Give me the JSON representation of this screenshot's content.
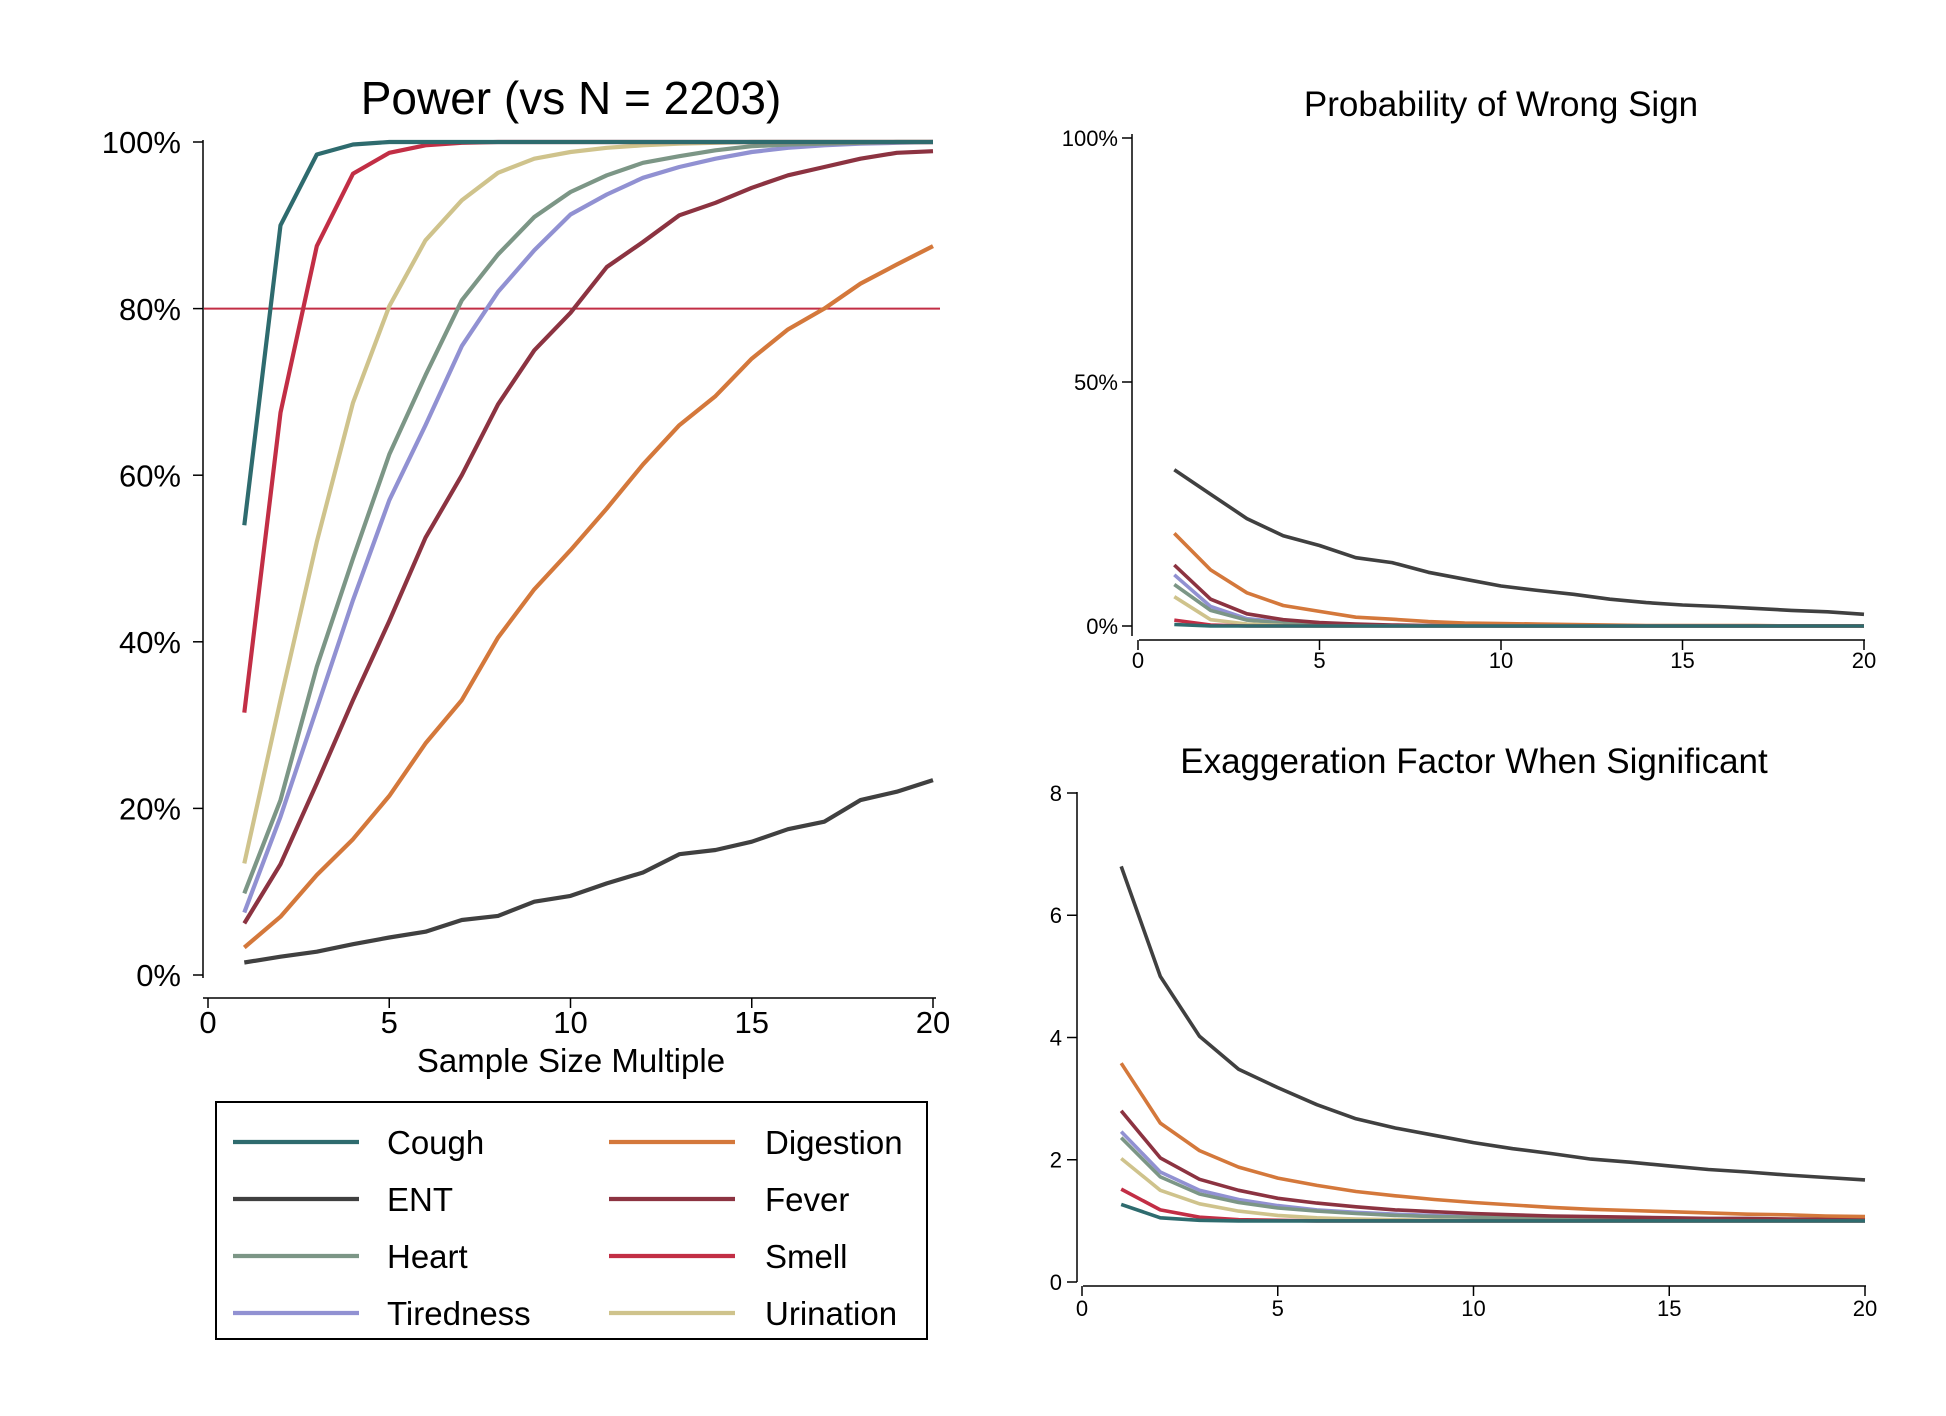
{
  "colors": {
    "Cough": "#2e6b6e",
    "ENT": "#404040",
    "Heart": "#7c9686",
    "Tiredness": "#9191d2",
    "Digestion": "#d4783b",
    "Fever": "#8c3341",
    "Smell": "#c22e45",
    "Urination": "#cfc38c",
    "reference_line": "#c22e45"
  },
  "legend": {
    "entries": [
      "Cough",
      "Digestion",
      "ENT",
      "Fever",
      "Heart",
      "Smell",
      "Tiredness",
      "Urination"
    ]
  },
  "chart_data": [
    {
      "id": "power",
      "type": "line",
      "title": "Power (vs N = 2203)",
      "xlabel": "Sample Size Multiple",
      "ylabel": "",
      "xlim": [
        0,
        20
      ],
      "ylim": [
        0,
        100
      ],
      "xticks": [
        0,
        5,
        10,
        15,
        20
      ],
      "yticks": [
        0,
        20,
        40,
        60,
        80,
        100
      ],
      "ytick_labels": [
        "0%",
        "20%",
        "40%",
        "60%",
        "80%",
        "100%"
      ],
      "reference_line": {
        "axis": "y",
        "value": 80
      },
      "x": [
        1,
        2,
        3,
        4,
        5,
        6,
        7,
        8,
        9,
        10,
        11,
        12,
        13,
        14,
        15,
        16,
        17,
        18,
        19,
        20
      ],
      "series": [
        {
          "name": "Cough",
          "values": [
            54,
            90,
            98.5,
            99.7,
            100,
            100,
            100,
            100,
            100,
            100,
            100,
            100,
            100,
            100,
            100,
            100,
            100,
            100,
            100,
            100
          ]
        },
        {
          "name": "ENT",
          "values": [
            1.5,
            2.2,
            2.8,
            3.7,
            4.5,
            5.2,
            6.6,
            7.1,
            8.8,
            9.5,
            11,
            12.3,
            14.5,
            15,
            16,
            17.5,
            18.4,
            21,
            22,
            23.4
          ]
        },
        {
          "name": "Heart",
          "values": [
            9.8,
            21,
            37,
            50,
            62.5,
            72,
            81,
            86.5,
            91,
            94,
            96,
            97.5,
            98.3,
            99,
            99.5,
            99.7,
            99.8,
            99.9,
            100,
            100
          ]
        },
        {
          "name": "Tiredness",
          "values": [
            7.5,
            19,
            32,
            45,
            57,
            66,
            75.5,
            82,
            87,
            91.3,
            93.7,
            95.7,
            97,
            98,
            98.8,
            99.3,
            99.6,
            99.8,
            99.9,
            100
          ]
        },
        {
          "name": "Digestion",
          "values": [
            3.3,
            7,
            12,
            16.3,
            21.5,
            27.8,
            33,
            40.5,
            46.3,
            51,
            56,
            61.3,
            66,
            69.5,
            74,
            77.5,
            80,
            83,
            85.3,
            87.5
          ]
        },
        {
          "name": "Fever",
          "values": [
            6.2,
            13.3,
            23,
            33,
            42.5,
            52.5,
            60,
            68.5,
            75,
            79.5,
            85,
            88,
            91.2,
            92.7,
            94.5,
            96,
            97,
            98,
            98.7,
            98.9
          ]
        },
        {
          "name": "Smell",
          "values": [
            31.5,
            67.5,
            87.5,
            96.2,
            98.7,
            99.6,
            99.9,
            100,
            100,
            100,
            100,
            100,
            100,
            100,
            100,
            100,
            100,
            100,
            100,
            100
          ]
        },
        {
          "name": "Urination",
          "values": [
            13.4,
            33,
            52,
            68.7,
            80.3,
            88.2,
            93,
            96.3,
            98,
            98.8,
            99.3,
            99.6,
            99.8,
            99.9,
            100,
            100,
            100,
            100,
            100,
            100
          ]
        }
      ]
    },
    {
      "id": "wrong-sign",
      "type": "line",
      "title": "Probability of Wrong Sign",
      "xlabel": "",
      "ylabel": "",
      "xlim": [
        0,
        20
      ],
      "ylim": [
        0,
        100
      ],
      "xticks": [
        0,
        5,
        10,
        15,
        20
      ],
      "yticks": [
        0,
        50,
        100
      ],
      "ytick_labels": [
        "0%",
        "50%",
        "100%"
      ],
      "x": [
        1,
        2,
        3,
        4,
        5,
        6,
        7,
        8,
        9,
        10,
        11,
        12,
        13,
        14,
        15,
        16,
        17,
        18,
        19,
        20
      ],
      "series": [
        {
          "name": "Cough",
          "values": [
            0.3,
            0,
            0,
            0,
            0,
            0,
            0,
            0,
            0,
            0,
            0,
            0,
            0,
            0,
            0,
            0,
            0,
            0,
            0,
            0
          ]
        },
        {
          "name": "ENT",
          "values": [
            32,
            27,
            22,
            18.5,
            16.5,
            14,
            13,
            11,
            9.6,
            8.2,
            7.3,
            6.5,
            5.5,
            4.8,
            4.3,
            4,
            3.6,
            3.2,
            2.9,
            2.4
          ]
        },
        {
          "name": "Heart",
          "values": [
            8.5,
            3.2,
            1.2,
            0.6,
            0.3,
            0.2,
            0.1,
            0,
            0,
            0,
            0,
            0,
            0,
            0,
            0,
            0,
            0,
            0,
            0,
            0
          ]
        },
        {
          "name": "Tiredness",
          "values": [
            10.5,
            4,
            1.5,
            0.8,
            0.4,
            0.2,
            0.1,
            0.1,
            0,
            0,
            0,
            0,
            0,
            0,
            0,
            0,
            0,
            0,
            0,
            0
          ]
        },
        {
          "name": "Digestion",
          "values": [
            19,
            11.5,
            6.8,
            4.2,
            3,
            1.8,
            1.4,
            0.9,
            0.6,
            0.5,
            0.4,
            0.3,
            0.2,
            0.1,
            0.1,
            0.1,
            0.1,
            0,
            0,
            0
          ]
        },
        {
          "name": "Fever",
          "values": [
            12.5,
            5.5,
            2.5,
            1.3,
            0.7,
            0.4,
            0.2,
            0.1,
            0.1,
            0,
            0,
            0,
            0,
            0,
            0,
            0,
            0,
            0,
            0,
            0
          ]
        },
        {
          "name": "Smell",
          "values": [
            1.2,
            0.2,
            0,
            0,
            0,
            0,
            0,
            0,
            0,
            0,
            0,
            0,
            0,
            0,
            0,
            0,
            0,
            0,
            0,
            0
          ]
        },
        {
          "name": "Urination",
          "values": [
            6,
            1.3,
            0.4,
            0.1,
            0,
            0,
            0,
            0,
            0,
            0,
            0,
            0,
            0,
            0,
            0,
            0,
            0,
            0,
            0,
            0
          ]
        }
      ]
    },
    {
      "id": "exaggeration",
      "type": "line",
      "title": "Exaggeration Factor When Significant",
      "xlabel": "",
      "ylabel": "",
      "xlim": [
        0,
        20
      ],
      "ylim": [
        0,
        8
      ],
      "xticks": [
        0,
        5,
        10,
        15,
        20
      ],
      "yticks": [
        0,
        2,
        4,
        6,
        8
      ],
      "ytick_labels": [
        "0",
        "2",
        "4",
        "6",
        "8"
      ],
      "x": [
        1,
        2,
        3,
        4,
        5,
        6,
        7,
        8,
        9,
        10,
        11,
        12,
        13,
        14,
        15,
        16,
        17,
        18,
        19,
        20
      ],
      "series": [
        {
          "name": "Cough",
          "values": [
            1.27,
            1.05,
            1.01,
            1,
            1,
            1,
            1,
            1,
            1,
            1,
            1,
            1,
            1,
            1,
            1,
            1,
            1,
            1,
            1,
            1
          ]
        },
        {
          "name": "ENT",
          "values": [
            6.8,
            5,
            4.02,
            3.48,
            3.18,
            2.9,
            2.67,
            2.52,
            2.4,
            2.28,
            2.18,
            2.1,
            2.01,
            1.96,
            1.9,
            1.84,
            1.8,
            1.75,
            1.71,
            1.67
          ]
        },
        {
          "name": "Heart",
          "values": [
            2.36,
            1.72,
            1.44,
            1.3,
            1.21,
            1.16,
            1.12,
            1.09,
            1.07,
            1.06,
            1.05,
            1.04,
            1.03,
            1.03,
            1.02,
            1.02,
            1.02,
            1.01,
            1.01,
            1.01
          ]
        },
        {
          "name": "Tiredness",
          "values": [
            2.46,
            1.8,
            1.5,
            1.35,
            1.25,
            1.18,
            1.14,
            1.11,
            1.09,
            1.07,
            1.06,
            1.05,
            1.04,
            1.03,
            1.03,
            1.02,
            1.02,
            1.02,
            1.01,
            1.01
          ]
        },
        {
          "name": "Digestion",
          "values": [
            3.58,
            2.6,
            2.15,
            1.88,
            1.7,
            1.58,
            1.48,
            1.41,
            1.35,
            1.3,
            1.26,
            1.22,
            1.19,
            1.17,
            1.15,
            1.13,
            1.11,
            1.1,
            1.08,
            1.07
          ]
        },
        {
          "name": "Fever",
          "values": [
            2.8,
            2.03,
            1.68,
            1.5,
            1.37,
            1.29,
            1.23,
            1.18,
            1.15,
            1.12,
            1.1,
            1.08,
            1.07,
            1.06,
            1.05,
            1.04,
            1.04,
            1.03,
            1.03,
            1.02
          ]
        },
        {
          "name": "Smell",
          "values": [
            1.52,
            1.18,
            1.06,
            1.02,
            1.01,
            1,
            1,
            1,
            1,
            1,
            1,
            1,
            1,
            1,
            1,
            1,
            1,
            1,
            1,
            1
          ]
        },
        {
          "name": "Urination",
          "values": [
            2.02,
            1.5,
            1.28,
            1.16,
            1.09,
            1.05,
            1.03,
            1.02,
            1.01,
            1,
            1,
            1,
            1,
            1,
            1,
            1,
            1,
            1,
            1,
            1
          ]
        }
      ]
    }
  ]
}
